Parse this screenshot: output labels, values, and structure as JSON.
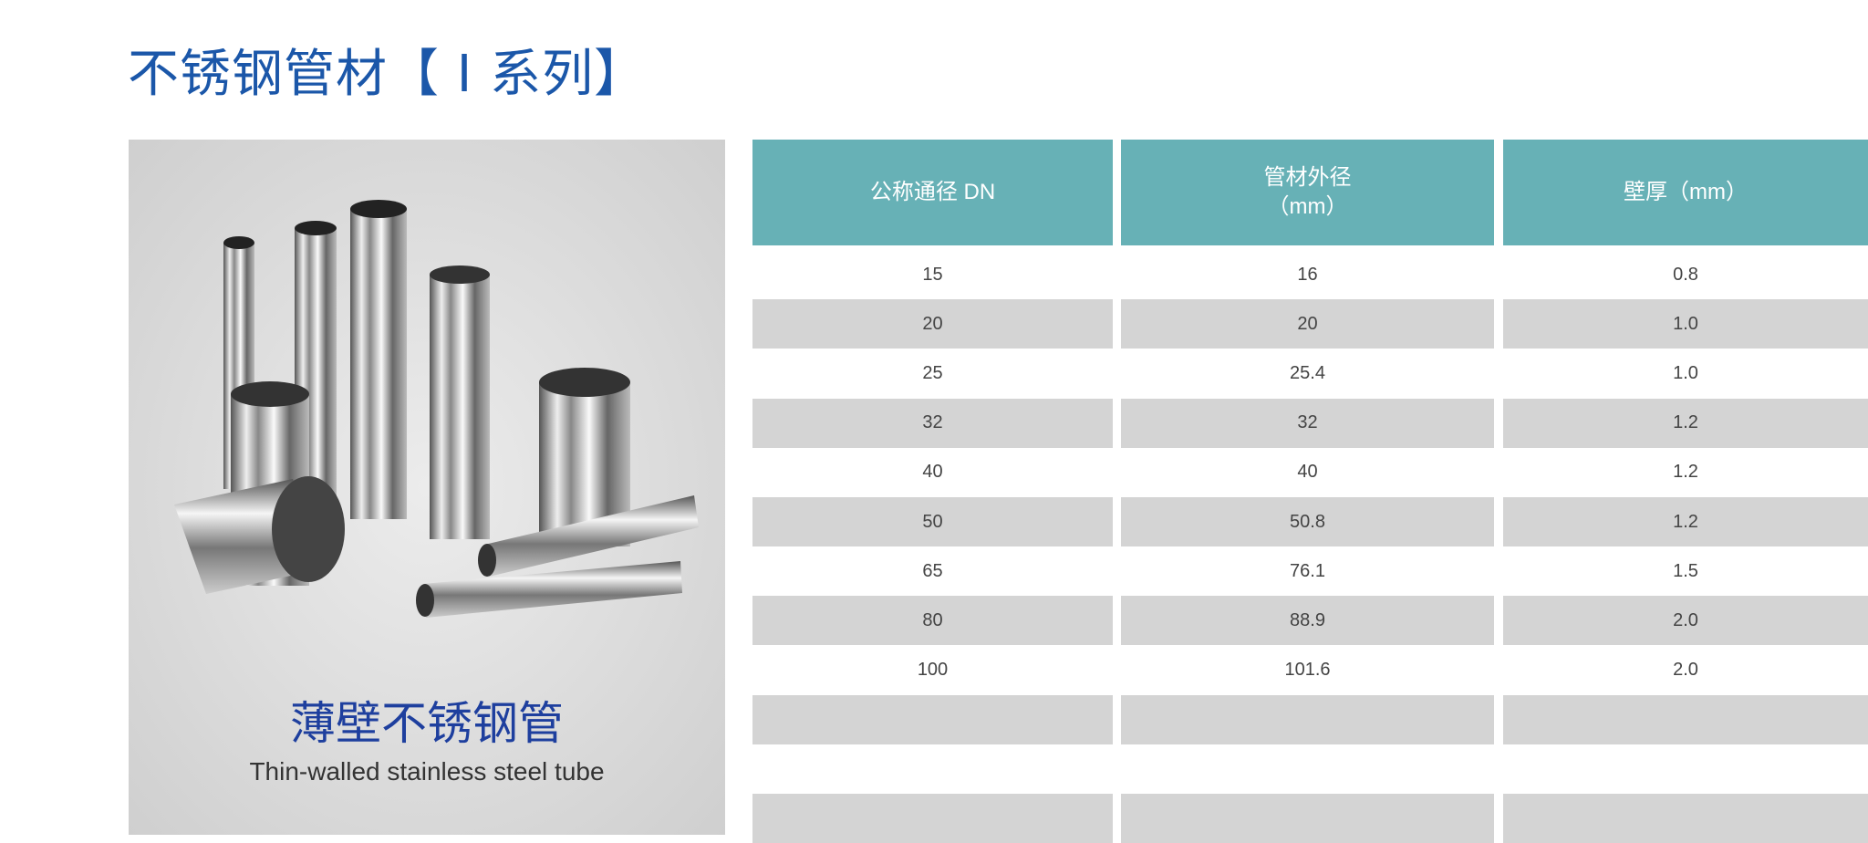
{
  "title": "不锈钢管材【 I 系列】",
  "product": {
    "name_cn": "薄壁不锈钢管",
    "name_en": "Thin-walled stainless steel tube"
  },
  "colors": {
    "title": "#1b57a9",
    "header": "#67b1b6",
    "stripe": "#d4d4d4"
  },
  "table": {
    "headers": [
      {
        "line1": "公称通径 DN",
        "line2": ""
      },
      {
        "line1": "管材外径",
        "line2": "（mm）"
      },
      {
        "line1": "壁厚（mm）",
        "line2": ""
      }
    ],
    "rows": [
      [
        "15",
        "16",
        "0.8"
      ],
      [
        "20",
        "20",
        "1.0"
      ],
      [
        "25",
        "25.4",
        "1.0"
      ],
      [
        "32",
        "32",
        "1.2"
      ],
      [
        "40",
        "40",
        "1.2"
      ],
      [
        "50",
        "50.8",
        "1.2"
      ],
      [
        "65",
        "76.1",
        "1.5"
      ],
      [
        "80",
        "88.9",
        "2.0"
      ],
      [
        "100",
        "101.6",
        "2.0"
      ],
      [
        "",
        "",
        ""
      ],
      [
        "",
        "",
        ""
      ],
      [
        "",
        "",
        ""
      ]
    ]
  }
}
